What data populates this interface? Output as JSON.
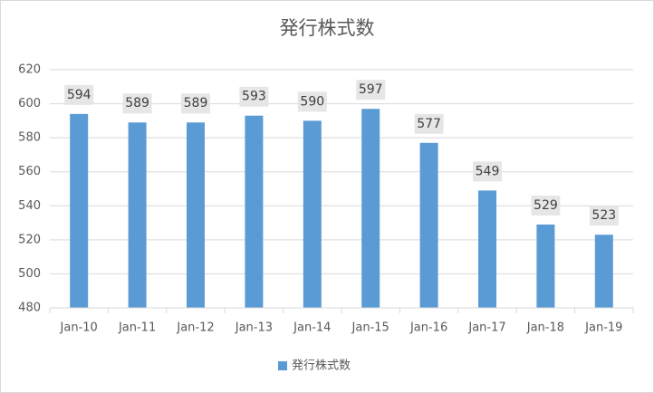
{
  "chart_data": {
    "type": "bar",
    "title": "発行株式数",
    "categories": [
      "Jan-10",
      "Jan-11",
      "Jan-12",
      "Jan-13",
      "Jan-14",
      "Jan-15",
      "Jan-16",
      "Jan-17",
      "Jan-18",
      "Jan-19"
    ],
    "series": [
      {
        "name": "発行株式数",
        "color": "#5b9bd5",
        "values": [
          594,
          589,
          589,
          593,
          590,
          597,
          577,
          549,
          529,
          523
        ]
      }
    ],
    "ylim": [
      480,
      620
    ],
    "yticks": [
      480,
      500,
      520,
      540,
      560,
      580,
      600,
      620
    ],
    "grid": true,
    "legend": "bottom"
  }
}
